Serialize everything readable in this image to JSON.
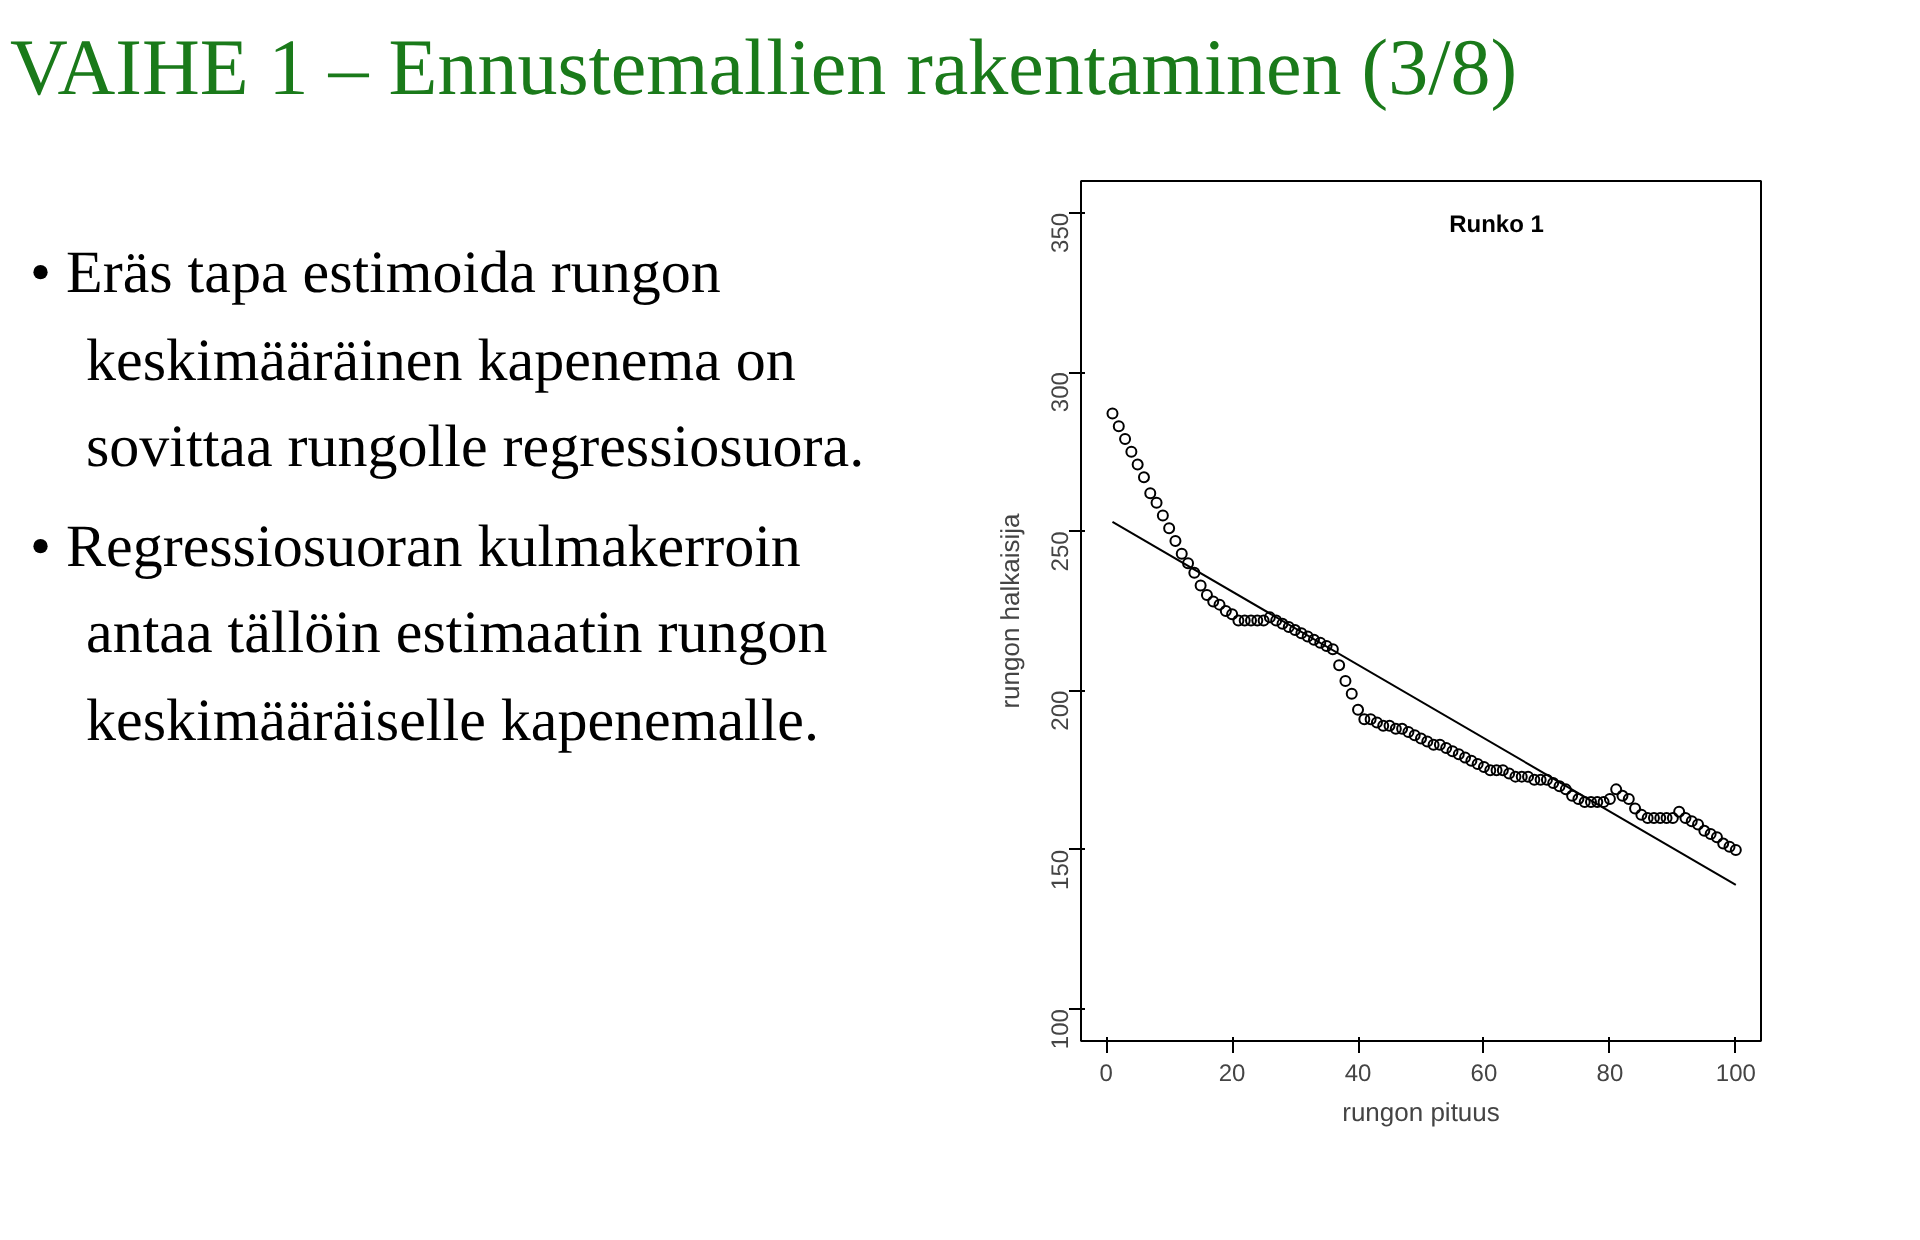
{
  "chart_data": {
    "type": "scatter",
    "title": "VAIHE 1 – Ennustemallien rakentaminen (3/8)",
    "subtitle": "Runko 1",
    "xlabel": "rungon pituus",
    "ylabel": "rungon halkaisija",
    "annotations": [
      "• Eräs tapa estimoida rungon keskimääräinen kapenema on sovittaa rungolle regressiosuora.",
      "• Regressiosuoran kulmakerroin antaa tällöin estimaatin rungon keskimääräiselle kapenemalle."
    ],
    "xlim": [
      -4,
      104
    ],
    "ylim": [
      90,
      360
    ],
    "xticks": [
      0,
      20,
      40,
      60,
      80,
      100
    ],
    "yticks": [
      100,
      150,
      200,
      250,
      300,
      350
    ],
    "grid": false,
    "marker": "circle",
    "series": [
      {
        "color": "#000000",
        "x": [
          1,
          2,
          3,
          4,
          5,
          6,
          7,
          8,
          9,
          10,
          11,
          12,
          13,
          14,
          15,
          16,
          17,
          18,
          19,
          20,
          21,
          22,
          23,
          24,
          25,
          26,
          27,
          28,
          29,
          30,
          31,
          32,
          33,
          34,
          35,
          36,
          37,
          38,
          39,
          40,
          41,
          42,
          43,
          44,
          45,
          46,
          47,
          48,
          49,
          50,
          51,
          52,
          53,
          54,
          55,
          56,
          57,
          58,
          59,
          60,
          61,
          62,
          63,
          64,
          65,
          66,
          67,
          68,
          69,
          70,
          71,
          72,
          73,
          74,
          75,
          76,
          77,
          78,
          79,
          80,
          81,
          82,
          83,
          84,
          85,
          86,
          87,
          88,
          89,
          90,
          91,
          92,
          93,
          94,
          95,
          96,
          97,
          98,
          99,
          100
        ],
        "values": [
          287,
          283,
          279,
          275,
          271,
          267,
          262,
          259,
          255,
          251,
          247,
          243,
          240,
          237,
          233,
          230,
          228,
          227,
          225,
          224,
          222,
          222,
          222,
          222,
          222,
          223,
          222,
          221,
          220,
          219,
          218,
          217,
          216,
          215,
          214,
          213,
          208,
          203,
          199,
          194,
          191,
          191,
          190,
          189,
          189,
          188,
          188,
          187,
          186,
          185,
          184,
          183,
          183,
          182,
          181,
          180,
          179,
          178,
          177,
          176,
          175,
          175,
          175,
          174,
          173,
          173,
          173,
          172,
          172,
          172,
          171,
          170,
          169,
          167,
          166,
          165,
          165,
          165,
          165,
          166,
          169,
          167,
          166,
          163,
          161,
          160,
          160,
          160,
          160,
          160,
          162,
          160,
          159,
          158,
          156,
          155,
          154,
          152,
          151,
          150
        ]
      },
      {
        "type": "line",
        "marker": "none",
        "color": "#000000",
        "line_style": "solid",
        "x": [
          1,
          100
        ],
        "values": [
          253,
          139
        ]
      }
    ]
  }
}
